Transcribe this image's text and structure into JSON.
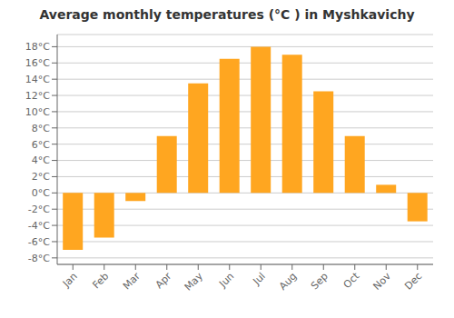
{
  "chart_data": {
    "type": "bar",
    "title": "Average monthly temperatures (°C ) in Myshkavichy",
    "categories": [
      "Jan",
      "Feb",
      "Mar",
      "Apr",
      "May",
      "Jun",
      "Jul",
      "Aug",
      "Sep",
      "Oct",
      "Nov",
      "Dec"
    ],
    "values": [
      -7.0,
      -5.5,
      -1.0,
      7.0,
      13.5,
      16.5,
      18.0,
      17.0,
      12.5,
      7.0,
      1.0,
      -3.5
    ],
    "color": "#FFA620",
    "ylim": [
      -8.8,
      19.5
    ],
    "yticks": [
      {
        "value": -8,
        "label": "-8°C"
      },
      {
        "value": -6,
        "label": "-6°C"
      },
      {
        "value": -4,
        "label": "-4°C"
      },
      {
        "value": -2,
        "label": "-2°C"
      },
      {
        "value": 0,
        "label": "0°C"
      },
      {
        "value": 2,
        "label": "2°C"
      },
      {
        "value": 4,
        "label": "4°C"
      },
      {
        "value": 6,
        "label": "6°C"
      },
      {
        "value": 8,
        "label": "8°C"
      },
      {
        "value": 10,
        "label": "10°C"
      },
      {
        "value": 12,
        "label": "12°C"
      },
      {
        "value": 14,
        "label": "14°C"
      },
      {
        "value": 16,
        "label": "16°C"
      },
      {
        "value": 18,
        "label": "18°C"
      }
    ],
    "grid": true
  }
}
